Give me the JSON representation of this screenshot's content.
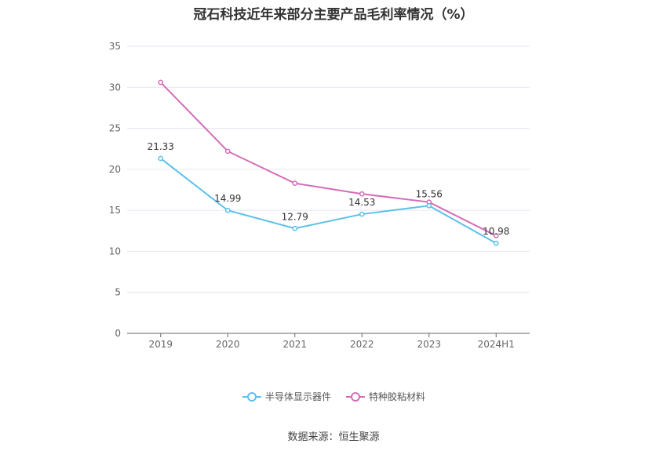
{
  "chart_data": {
    "type": "line",
    "title": "冠石科技近年来部分主要产品毛利率情况（%）",
    "categories": [
      "2019",
      "2020",
      "2021",
      "2022",
      "2023",
      "2024H1"
    ],
    "series": [
      {
        "name": "半导体显示器件",
        "color": "#5bc0ea",
        "values": [
          21.33,
          14.99,
          12.79,
          14.53,
          15.56,
          10.98
        ],
        "labels": [
          "21.33",
          "14.99",
          "12.79",
          "14.53",
          "15.56",
          "10.98"
        ]
      },
      {
        "name": "特种胶粘材料",
        "color": "#d46db8",
        "values": [
          30.6,
          22.2,
          18.3,
          17.0,
          16.0,
          11.9
        ]
      }
    ],
    "yticks": [
      "0",
      "5",
      "10",
      "15",
      "20",
      "25",
      "30",
      "35"
    ],
    "ylim": [
      0,
      35
    ],
    "grid": true,
    "legend_position": "bottom"
  },
  "source": "数据来源：恒生聚源"
}
